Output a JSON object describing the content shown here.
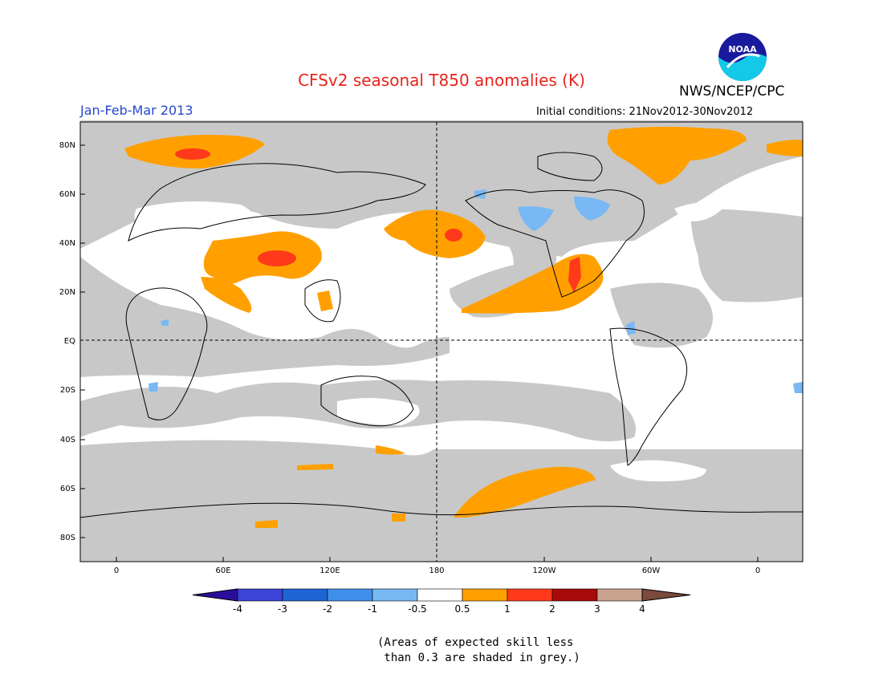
{
  "header": {
    "title": "CFSv2 seasonal T850 anomalies (K)",
    "organization": "NWS/NCEP/CPC",
    "logo_text": "NOAA",
    "period": "Jan-Feb-Mar 2013",
    "initial_conditions": "Initial conditions: 21Nov2012-30Nov2012"
  },
  "map": {
    "lat_labels": [
      "80N",
      "60N",
      "40N",
      "20N",
      "EQ",
      "20S",
      "40S",
      "60S",
      "80S"
    ],
    "lon_labels": [
      "0",
      "60E",
      "120E",
      "180",
      "120W",
      "60W",
      "0"
    ],
    "grey_meaning": "skill less than 0.3"
  },
  "colorbar": {
    "ticks": [
      "-4",
      "-3",
      "-2",
      "-1",
      "-0.5",
      "0.5",
      "1",
      "2",
      "3",
      "4"
    ],
    "colors": [
      "#2a0f9c",
      "#3b44d6",
      "#1e64d4",
      "#3f8fea",
      "#79b8f4",
      "#ffffff",
      "#ffa000",
      "#ff3a1a",
      "#a80a0a",
      "#c9a28e",
      "#7a4a3a"
    ]
  },
  "footnote": {
    "line1": "(Areas of expected skill less",
    "line2": " than 0.3 are shaded in grey.)"
  }
}
